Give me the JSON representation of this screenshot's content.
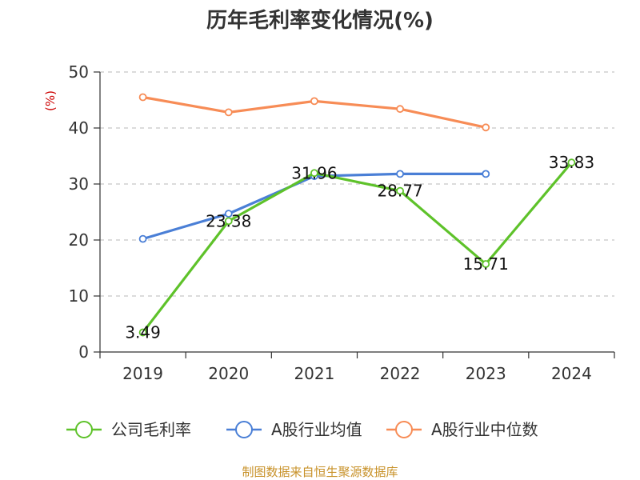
{
  "chart_data": {
    "type": "line",
    "title": "历年毛利率变化情况(%)",
    "ylabel": "(%)",
    "categories": [
      "2019",
      "2020",
      "2021",
      "2022",
      "2023",
      "2024"
    ],
    "ylim": [
      0,
      50
    ],
    "yticks": [
      0,
      10,
      20,
      30,
      40,
      50
    ],
    "grid": true,
    "legend_position": "bottom",
    "series": [
      {
        "name": "公司毛利率",
        "color": "#5ec22a",
        "values": [
          3.49,
          23.38,
          31.96,
          28.77,
          15.71,
          33.83
        ],
        "show_labels": true
      },
      {
        "name": "A股行业均值",
        "color": "#4a7fd6",
        "values": [
          20.2,
          24.7,
          31.4,
          31.8,
          31.8,
          null
        ],
        "show_labels": false
      },
      {
        "name": "A股行业中位数",
        "color": "#f78c56",
        "values": [
          45.5,
          42.8,
          44.8,
          43.4,
          40.1,
          null
        ],
        "show_labels": false
      }
    ],
    "source": "制图数据来自恒生聚源数据库",
    "ylabel_color": "#cc0000",
    "source_color": "#c8922a"
  }
}
